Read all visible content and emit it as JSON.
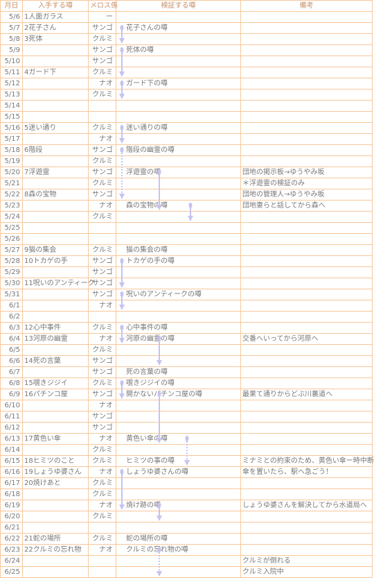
{
  "table": {
    "headers": [
      "月日",
      "入手する噂",
      "メロス係",
      "検証する噂",
      "備考"
    ],
    "rows": [
      [
        "5/6",
        "1人面ガラス",
        "ー",
        null,
        null
      ],
      [
        "5/7",
        "2花子さん",
        "サンゴ",
        "花子さんの噂",
        null
      ],
      [
        "5/8",
        "3死体",
        "クルミ",
        null,
        null
      ],
      [
        "5/9",
        null,
        "サンゴ",
        "死体の噂",
        null
      ],
      [
        "5/10",
        null,
        "サンゴ",
        null,
        null
      ],
      [
        "5/11",
        "4ガード下",
        "クルミ",
        null,
        null
      ],
      [
        "5/12",
        null,
        "ナオ",
        "ガード下の噂",
        null
      ],
      [
        "5/13",
        null,
        "クルミ",
        null,
        null
      ],
      [
        "5/14",
        null,
        null,
        null,
        null
      ],
      [
        "5/15",
        null,
        null,
        null,
        null
      ],
      [
        "5/16",
        "5迷い通り",
        "クルミ",
        "迷い通りの噂",
        null
      ],
      [
        "5/17",
        null,
        "ナオ",
        null,
        null
      ],
      [
        "5/18",
        "6階段",
        "サンゴ",
        "階段の幽霊の噂",
        null
      ],
      [
        "5/19",
        null,
        "クルミ",
        null,
        null
      ],
      [
        "5/20",
        "7浮遊霊",
        "サンゴ",
        "浮遊霊の噂",
        "団地の掲示板→ゆうやみ坂"
      ],
      [
        "5/21",
        null,
        "クルミ",
        null,
        "＊浮遊霊の検証のみ"
      ],
      [
        "5/22",
        "8森の宝物",
        "サンゴ",
        null,
        "団地の管理人→ゆうやみ坂"
      ],
      [
        "5/23",
        null,
        "ナオ",
        "森の宝物の噂",
        "団地妻らと話してから森へ"
      ],
      [
        "5/24",
        null,
        "クルミ",
        null,
        null
      ],
      [
        "5/25",
        null,
        null,
        null,
        null
      ],
      [
        "5/26",
        null,
        null,
        null,
        null
      ],
      [
        "5/27",
        "9猫の集会",
        "クルミ",
        "猫の集会の噂",
        null
      ],
      [
        "5/28",
        "10トカゲの手",
        "サンゴ",
        "トカゲの手の噂",
        null
      ],
      [
        "5/29",
        null,
        "サンゴ",
        null,
        null
      ],
      [
        "5/30",
        "11呪いのアンティーク",
        "サンゴ",
        null,
        null
      ],
      [
        "5/31",
        null,
        "サンゴ",
        "呪いのアンティークの噂",
        null
      ],
      [
        "6/1",
        null,
        "ナオ",
        null,
        null
      ],
      [
        "6/2",
        null,
        null,
        null,
        null
      ],
      [
        "6/3",
        "12心中事件",
        "クルミ",
        "心中事件の噂",
        null
      ],
      [
        "6/4",
        "13河原の幽霊",
        "ナオ",
        "河原の幽霊の噂",
        "交番へいってから河原へ"
      ],
      [
        "6/5",
        null,
        "クルミ",
        null,
        null
      ],
      [
        "6/6",
        "14死の言葉",
        "サンゴ",
        null,
        null
      ],
      [
        "6/7",
        null,
        "サンゴ",
        "死の言葉の噂",
        null
      ],
      [
        "6/8",
        "15覗きジジイ",
        "クルミ",
        "覗きジジイの噂",
        null
      ],
      [
        "6/9",
        "16パチンコ屋",
        "サンゴ",
        "開かないパチンコ屋の噂",
        "最果て通りからどぶ川裏道へ"
      ],
      [
        "6/10",
        null,
        "ナオ",
        null,
        null
      ],
      [
        "6/11",
        null,
        "サンゴ",
        null,
        null
      ],
      [
        "6/12",
        null,
        "サンゴ",
        null,
        null
      ],
      [
        "6/13",
        "17黄色い傘",
        "ナオ",
        "黄色い傘の噂",
        null
      ],
      [
        "6/14",
        null,
        "クルミ",
        null,
        null
      ],
      [
        "6/15",
        "18ヒミツのこと",
        "クルミ",
        "ヒミツの事の噂",
        "ミナミとの約束のため、黄色い傘ー時中断"
      ],
      [
        "6/16",
        "19しょうゆ婆さん",
        "ナオ",
        "しょうゆ婆さんの噂",
        "傘を置いたら、駅へ急ごう！"
      ],
      [
        "6/17",
        "20焼けあと",
        "クルミ",
        null,
        null
      ],
      [
        "6/18",
        null,
        "クルミ",
        null,
        null
      ],
      [
        "6/19",
        null,
        "ナオ",
        "焼け跡の噂",
        "しょうゆ婆さんを解決してから水道局へ"
      ],
      [
        "6/20",
        null,
        "クルミ",
        null,
        null
      ],
      [
        "6/21",
        null,
        null,
        null,
        null
      ],
      [
        "6/22",
        "21蛇の場所",
        "クルミ",
        "蛇の場所の噂",
        null
      ],
      [
        "6/23",
        "22クルミの忘れ物",
        "ナオ",
        "クルミの忘れ物の噂",
        null
      ],
      [
        "6/24",
        null,
        null,
        null,
        "クルミが倒れる"
      ],
      [
        "6/25",
        null,
        null,
        null,
        "クルミ入院中"
      ]
    ]
  }
}
